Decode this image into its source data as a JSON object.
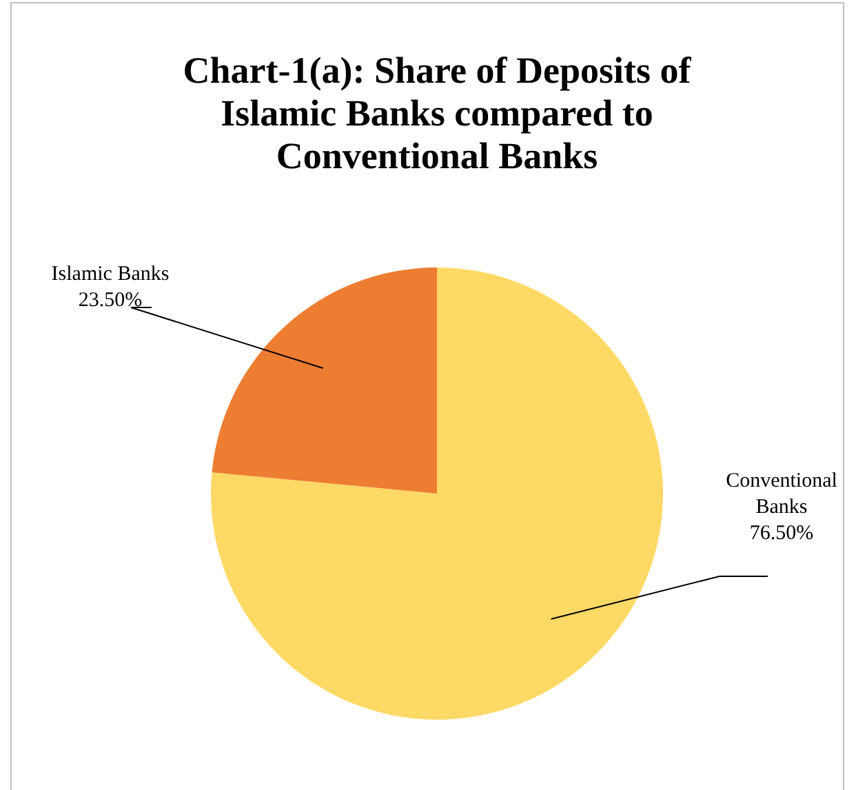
{
  "chart_data": {
    "type": "pie",
    "title": "Chart-1(a): Share of Deposits of Islamic Banks compared to Conventional Banks",
    "categories": [
      "Conventional Banks",
      "Islamic Banks"
    ],
    "values": [
      76.5,
      23.5
    ],
    "colors": [
      "#ffd966",
      "#ed7d31"
    ],
    "value_labels": [
      "76.50%",
      "23.50%"
    ],
    "legend": false
  }
}
